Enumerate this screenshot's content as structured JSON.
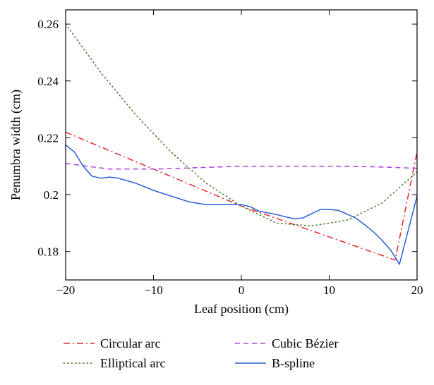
{
  "chart_data": {
    "type": "line",
    "title": "",
    "xlabel": "Leaf position (cm)",
    "ylabel": "Penumbra width (cm)",
    "xlim": [
      -20,
      20
    ],
    "ylim": [
      0.17,
      0.265
    ],
    "xticks": [
      -20,
      -10,
      0,
      10,
      20
    ],
    "xtick_labels": [
      "−20",
      "−10",
      "0",
      "10",
      "20"
    ],
    "yticks": [
      0.18,
      0.2,
      0.22,
      0.24,
      0.26
    ],
    "ytick_labels": [
      "0.18",
      "0.2",
      "0.22",
      "0.24",
      "0.26"
    ],
    "grid": false,
    "legend_position": "below",
    "series": [
      {
        "name": "Circular arc",
        "color": "#e8262a",
        "style": "dashdot",
        "x": [
          -20,
          0,
          17.5,
          20
        ],
        "y": [
          0.222,
          0.196,
          0.177,
          0.215
        ]
      },
      {
        "name": "Elliptical arc",
        "color": "#4a7a2a",
        "style": "dotted",
        "x": [
          -20,
          -16,
          -12,
          -8,
          -4,
          0,
          4,
          8,
          12,
          16,
          20
        ],
        "y": [
          0.26,
          0.243,
          0.228,
          0.215,
          0.204,
          0.196,
          0.19,
          0.189,
          0.191,
          0.197,
          0.208
        ]
      },
      {
        "name": "Cubic Bézier",
        "color": "#b040e0",
        "style": "dashed",
        "x": [
          -20,
          -15,
          -10,
          -5,
          0,
          5,
          10,
          15,
          20
        ],
        "y": [
          0.211,
          0.209,
          0.209,
          0.2095,
          0.21,
          0.21,
          0.21,
          0.2098,
          0.2093
        ]
      },
      {
        "name": "B-spline",
        "color": "#2a5fd8",
        "style": "solid",
        "x": [
          -20,
          -19,
          -18,
          -17,
          -16,
          -15,
          -14,
          -12,
          -10,
          -8,
          -6,
          -4,
          -2,
          0,
          1,
          2,
          4,
          6,
          7,
          8,
          9,
          10,
          11,
          12,
          13,
          14,
          15,
          16,
          17,
          18,
          19,
          20
        ],
        "y": [
          0.2175,
          0.215,
          0.21,
          0.2065,
          0.2058,
          0.2062,
          0.2058,
          0.204,
          0.2015,
          0.1995,
          0.1975,
          0.1965,
          0.1965,
          0.1965,
          0.1958,
          0.1942,
          0.193,
          0.1915,
          0.1918,
          0.1933,
          0.1948,
          0.1948,
          0.1945,
          0.1932,
          0.1918,
          0.1895,
          0.187,
          0.184,
          0.1805,
          0.1755,
          0.1875,
          0.1995
        ]
      }
    ]
  }
}
